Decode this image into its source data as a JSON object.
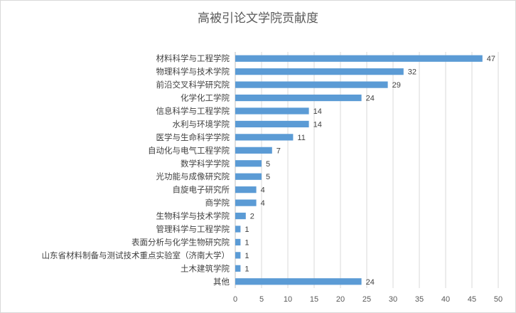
{
  "chart_data": {
    "type": "bar",
    "orientation": "horizontal",
    "title": "高被引论文学院贡献度",
    "categories": [
      "材料科学与工程学院",
      "物理科学与技术学院",
      "前沿交叉科学研究院",
      "化学化工学院",
      "信息科学与工程学院",
      "水利与环境学院",
      "医学与生命科学学院",
      "自动化与电气工程学院",
      "数学科学学院",
      "光功能与成像研究院",
      "自旋电子研究所",
      "商学院",
      "生物科学与技术学院",
      "管理科学与工程学院",
      "表面分析与化学生物研究院",
      "山东省材料制备与测试技术重点实验室（济南大学）",
      "土木建筑学院",
      "其他"
    ],
    "values": [
      47,
      32,
      29,
      24,
      14,
      14,
      11,
      7,
      5,
      5,
      4,
      4,
      2,
      1,
      1,
      1,
      1,
      24
    ],
    "xlim": [
      0,
      50
    ],
    "xticks": [
      0,
      5,
      10,
      15,
      20,
      25,
      30,
      35,
      40,
      45,
      50
    ],
    "grid": true,
    "data_labels": true,
    "legend": "none",
    "bar_color": "#5b9bd5"
  }
}
